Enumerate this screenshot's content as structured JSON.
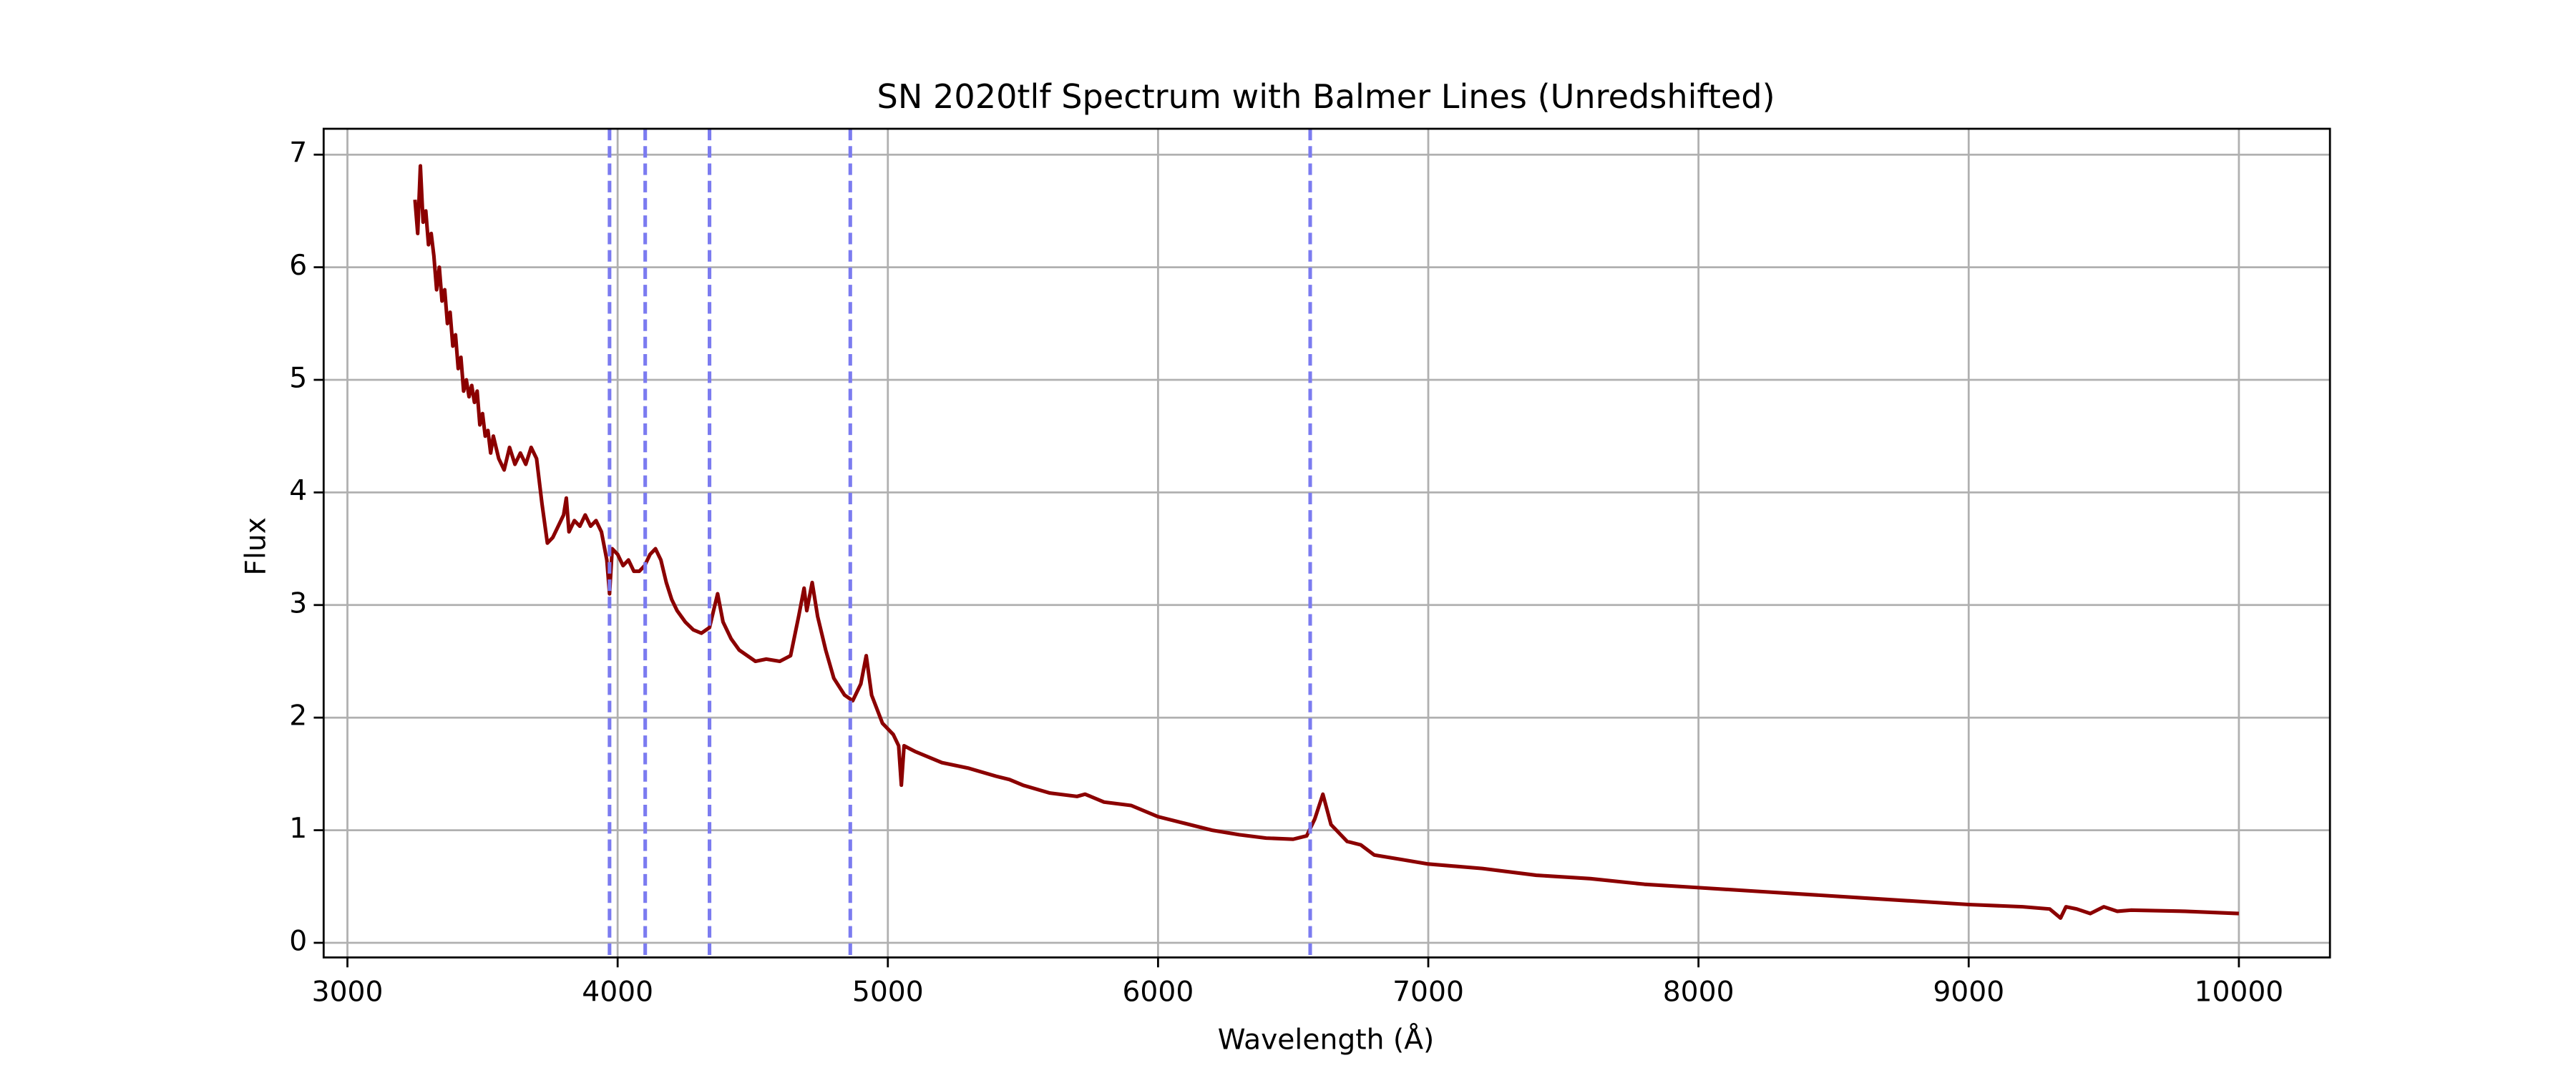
{
  "chart_data": {
    "type": "line",
    "title": "SN 2020tlf Spectrum with Balmer Lines (Unredshifted)",
    "x_label": "Wavelength (Å)",
    "y_label": "Flux",
    "xlim": [
      2912,
      10337
    ],
    "ylim": [
      -0.13,
      7.23
    ],
    "xticks": [
      3000,
      4000,
      5000,
      6000,
      7000,
      8000,
      9000,
      10000
    ],
    "yticks": [
      0,
      1,
      2,
      3,
      4,
      5,
      6,
      7
    ],
    "grid": true,
    "vlines": {
      "values": [
        3970,
        4102,
        4340,
        4861,
        6563
      ],
      "color": "#7b7bf0"
    },
    "series": [
      {
        "color": "#8b0000",
        "x": [
          3250,
          3260,
          3270,
          3280,
          3290,
          3300,
          3310,
          3320,
          3330,
          3340,
          3350,
          3360,
          3370,
          3380,
          3390,
          3400,
          3410,
          3420,
          3430,
          3440,
          3450,
          3460,
          3470,
          3480,
          3490,
          3500,
          3510,
          3520,
          3530,
          3540,
          3560,
          3580,
          3600,
          3620,
          3640,
          3660,
          3680,
          3700,
          3720,
          3740,
          3760,
          3780,
          3800,
          3810,
          3820,
          3840,
          3860,
          3880,
          3900,
          3920,
          3940,
          3960,
          3970,
          3980,
          4000,
          4020,
          4040,
          4060,
          4080,
          4100,
          4120,
          4140,
          4160,
          4180,
          4200,
          4220,
          4250,
          4280,
          4310,
          4340,
          4370,
          4390,
          4420,
          4450,
          4480,
          4510,
          4550,
          4600,
          4640,
          4670,
          4690,
          4700,
          4720,
          4740,
          4770,
          4800,
          4840,
          4870,
          4900,
          4920,
          4940,
          4980,
          5020,
          5040,
          5050,
          5060,
          5100,
          5200,
          5300,
          5400,
          5450,
          5500,
          5600,
          5700,
          5730,
          5800,
          5900,
          6000,
          6100,
          6200,
          6300,
          6400,
          6500,
          6550,
          6580,
          6610,
          6640,
          6700,
          6750,
          6800,
          6900,
          7000,
          7200,
          7400,
          7600,
          7800,
          8000,
          8200,
          8400,
          8600,
          8800,
          9000,
          9200,
          9300,
          9340,
          9360,
          9400,
          9450,
          9500,
          9550,
          9600,
          9800,
          10000
        ],
        "values": [
          6.6,
          6.3,
          6.9,
          6.4,
          6.5,
          6.2,
          6.3,
          6.1,
          5.8,
          6.0,
          5.7,
          5.8,
          5.5,
          5.6,
          5.3,
          5.4,
          5.1,
          5.2,
          4.9,
          5.0,
          4.85,
          4.95,
          4.8,
          4.9,
          4.6,
          4.7,
          4.5,
          4.55,
          4.35,
          4.5,
          4.3,
          4.2,
          4.4,
          4.25,
          4.35,
          4.25,
          4.4,
          4.3,
          3.9,
          3.55,
          3.6,
          3.7,
          3.8,
          3.95,
          3.65,
          3.75,
          3.7,
          3.8,
          3.7,
          3.75,
          3.65,
          3.4,
          3.1,
          3.5,
          3.45,
          3.35,
          3.4,
          3.3,
          3.3,
          3.35,
          3.45,
          3.5,
          3.4,
          3.2,
          3.05,
          2.95,
          2.85,
          2.78,
          2.75,
          2.8,
          3.1,
          2.85,
          2.7,
          2.6,
          2.55,
          2.5,
          2.52,
          2.5,
          2.55,
          2.9,
          3.15,
          2.95,
          3.2,
          2.9,
          2.6,
          2.35,
          2.2,
          2.15,
          2.3,
          2.55,
          2.2,
          1.95,
          1.85,
          1.75,
          1.4,
          1.75,
          1.7,
          1.6,
          1.55,
          1.48,
          1.45,
          1.4,
          1.33,
          1.3,
          1.32,
          1.25,
          1.22,
          1.12,
          1.06,
          1.0,
          0.96,
          0.93,
          0.92,
          0.95,
          1.1,
          1.32,
          1.05,
          0.9,
          0.87,
          0.78,
          0.74,
          0.7,
          0.66,
          0.6,
          0.57,
          0.52,
          0.49,
          0.46,
          0.43,
          0.4,
          0.37,
          0.34,
          0.32,
          0.3,
          0.22,
          0.32,
          0.3,
          0.26,
          0.32,
          0.28,
          0.29,
          0.28,
          0.26
        ]
      }
    ]
  }
}
